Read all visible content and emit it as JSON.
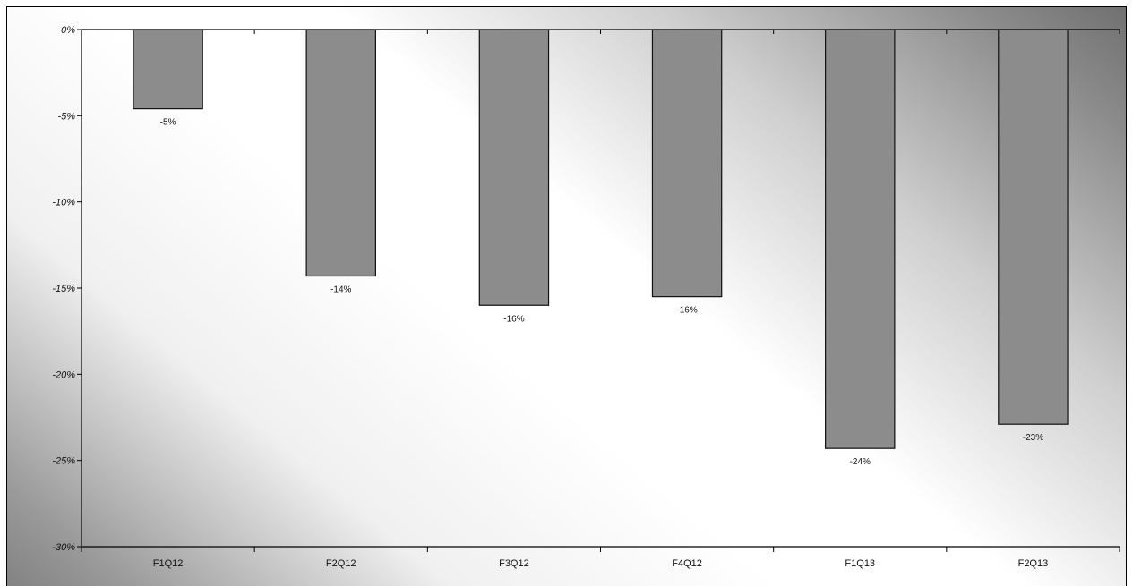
{
  "chart_data": {
    "type": "bar",
    "title": "",
    "xlabel": "",
    "ylabel": "",
    "categories": [
      "F1Q12",
      "F2Q12",
      "F3Q12",
      "F4Q12",
      "F1Q13",
      "F2Q13"
    ],
    "values": [
      -4.6,
      -14.3,
      -16.0,
      -15.5,
      -24.3,
      -22.9
    ],
    "data_labels": [
      "-5%",
      "-14%",
      "-16%",
      "-16%",
      "-24%",
      "-23%"
    ],
    "ylim": [
      -30,
      0
    ],
    "y_ticks": [
      0,
      -5,
      -10,
      -15,
      -20,
      -25,
      -30
    ],
    "y_tick_labels": [
      "0%",
      "-5%",
      "-10%",
      "-15%",
      "-20%",
      "-25%",
      "-30%"
    ],
    "grid": false,
    "legend": "none",
    "colors": {
      "bar_fill": "#8c8c8c",
      "bar_stroke": "#111111",
      "axis": "#000000",
      "frame": "#000000",
      "background_dark": "#6e6e6e",
      "background_light": "#ffffff"
    }
  }
}
